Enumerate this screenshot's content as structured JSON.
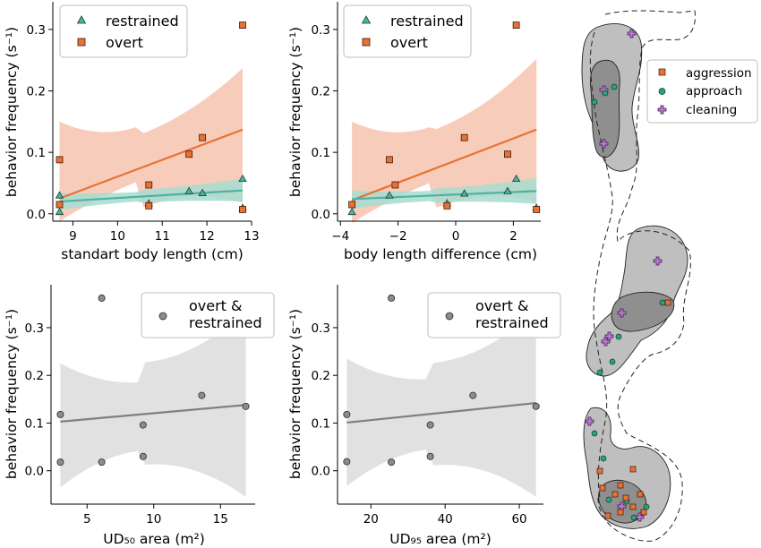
{
  "chart_data": [
    {
      "type": "scatter",
      "panel": "top-left",
      "xlabel": "standart body length (cm)",
      "ylabel": "behavior frequency (s⁻¹)",
      "xlim": [
        8.55,
        13.0
      ],
      "ylim": [
        -0.012,
        0.345
      ],
      "xticks": [
        9,
        10,
        11,
        12,
        13
      ],
      "yticks": [
        0.0,
        0.1,
        0.2,
        0.3
      ],
      "legend_position": "upper-left",
      "series": [
        {
          "name": "restrained",
          "marker": "triangle",
          "color": "#4db3a1",
          "x": [
            8.7,
            8.7,
            10.7,
            11.6,
            11.9,
            12.8,
            12.8
          ],
          "y": [
            0.003,
            0.03,
            0.017,
            0.037,
            0.034,
            0.057,
            0.01
          ]
        },
        {
          "name": "overt",
          "marker": "square",
          "color": "#e97135",
          "x": [
            8.7,
            8.7,
            10.7,
            10.7,
            11.6,
            11.9,
            12.8,
            12.8
          ],
          "y": [
            0.088,
            0.015,
            0.047,
            0.013,
            0.097,
            0.124,
            0.307,
            0.007
          ]
        }
      ],
      "fits": [
        {
          "series": "overt",
          "x": [
            8.7,
            12.8
          ],
          "y": [
            0.025,
            0.137
          ],
          "band_lower": [
            -0.012,
            0.018
          ],
          "band_upper": [
            0.15,
            0.237
          ],
          "band_x": [
            8.7,
            12.8
          ]
        },
        {
          "series": "restrained",
          "x": [
            8.7,
            12.8
          ],
          "y": [
            0.02,
            0.038
          ],
          "band_lower": [
            0.006,
            0.02
          ],
          "band_upper": [
            0.034,
            0.058
          ],
          "band_x": [
            8.7,
            12.8
          ]
        }
      ]
    },
    {
      "type": "scatter",
      "panel": "top-middle",
      "xlabel": "body length difference (cm)",
      "ylabel": "behavior frequency (s⁻¹)",
      "xlim": [
        -4.1,
        2.95
      ],
      "ylim": [
        -0.012,
        0.345
      ],
      "xticks": [
        -4,
        -2,
        0,
        2
      ],
      "yticks": [
        0.0,
        0.1,
        0.2,
        0.3
      ],
      "legend_position": "upper-left",
      "series": [
        {
          "name": "restrained",
          "marker": "triangle",
          "color": "#4db3a1",
          "x": [
            -3.6,
            -2.3,
            -0.3,
            0.3,
            1.8,
            2.1,
            2.8
          ],
          "y": [
            0.003,
            0.03,
            0.017,
            0.033,
            0.037,
            0.057,
            0.01
          ]
        },
        {
          "name": "overt",
          "marker": "square",
          "color": "#e97135",
          "x": [
            -3.6,
            -2.3,
            -2.1,
            -0.3,
            0.3,
            1.8,
            2.1,
            2.8
          ],
          "y": [
            0.015,
            0.088,
            0.047,
            0.013,
            0.124,
            0.097,
            0.307,
            0.007
          ]
        }
      ],
      "fits": [
        {
          "series": "overt",
          "x": [
            -3.6,
            2.8
          ],
          "y": [
            0.022,
            0.137
          ],
          "band_lower": [
            -0.015,
            0.02
          ],
          "band_upper": [
            0.15,
            0.252
          ],
          "band_x": [
            -3.6,
            2.8
          ]
        },
        {
          "series": "restrained",
          "x": [
            -3.6,
            2.8
          ],
          "y": [
            0.024,
            0.037
          ],
          "band_lower": [
            0.008,
            0.016
          ],
          "band_upper": [
            0.038,
            0.058
          ],
          "band_x": [
            -3.6,
            2.8
          ]
        }
      ]
    },
    {
      "type": "scatter",
      "panel": "bottom-left",
      "xlabel": "UD₅₀ area (m²)",
      "ylabel": "behavior frequency (s⁻¹)",
      "xlim": [
        2.3,
        17.6
      ],
      "ylim": [
        -0.07,
        0.39
      ],
      "xticks": [
        5,
        10,
        15
      ],
      "yticks": [
        0.0,
        0.1,
        0.2,
        0.3
      ],
      "legend_position": "upper-right",
      "series": [
        {
          "name": "overt & restrained",
          "marker": "circle",
          "color": "#8c8c8c",
          "x": [
            3.0,
            3.0,
            6.1,
            6.1,
            9.2,
            9.2,
            13.6,
            16.9
          ],
          "y": [
            0.118,
            0.018,
            0.362,
            0.018,
            0.096,
            0.03,
            0.158,
            0.135
          ]
        }
      ],
      "fits": [
        {
          "series": "overt & restrained",
          "x": [
            3.0,
            16.9
          ],
          "y": [
            0.103,
            0.138
          ],
          "band_lower": [
            -0.035,
            -0.055
          ],
          "band_upper": [
            0.225,
            0.335
          ],
          "band_x": [
            3.0,
            16.9
          ]
        }
      ]
    },
    {
      "type": "scatter",
      "panel": "bottom-middle",
      "xlabel": "UD₉₅ area (m²)",
      "ylabel": "behavior frequency (s⁻¹)",
      "xlim": [
        11.0,
        66.5
      ],
      "ylim": [
        -0.07,
        0.39
      ],
      "xticks": [
        20,
        40,
        60
      ],
      "yticks": [
        0.0,
        0.1,
        0.2,
        0.3
      ],
      "legend_position": "upper-right",
      "series": [
        {
          "name": "overt & restrained",
          "marker": "circle",
          "color": "#8c8c8c",
          "x": [
            13.5,
            13.5,
            25.5,
            25.5,
            36.0,
            36.0,
            47.5,
            64.5
          ],
          "y": [
            0.118,
            0.019,
            0.362,
            0.018,
            0.096,
            0.03,
            0.158,
            0.135
          ]
        }
      ],
      "fits": [
        {
          "series": "overt & restrained",
          "x": [
            13.5,
            64.5
          ],
          "y": [
            0.101,
            0.142
          ],
          "band_lower": [
            -0.032,
            -0.055
          ],
          "band_upper": [
            0.235,
            0.335
          ],
          "band_x": [
            13.5,
            64.5
          ]
        }
      ]
    }
  ],
  "map_legend": {
    "items": [
      {
        "name": "aggression",
        "marker": "square",
        "color": "#e97135"
      },
      {
        "name": "approach",
        "marker": "circle",
        "color": "#2aa37a"
      },
      {
        "name": "cleaning",
        "marker": "plus",
        "color": "#c07ad6"
      }
    ]
  },
  "colors": {
    "overt": "#e97135",
    "overt_band": "#f7c3ae",
    "restrained": "#4db3a1",
    "restrained_band": "#a7dcd0",
    "combined": "#808080",
    "combined_band": "#dcdcdc"
  }
}
